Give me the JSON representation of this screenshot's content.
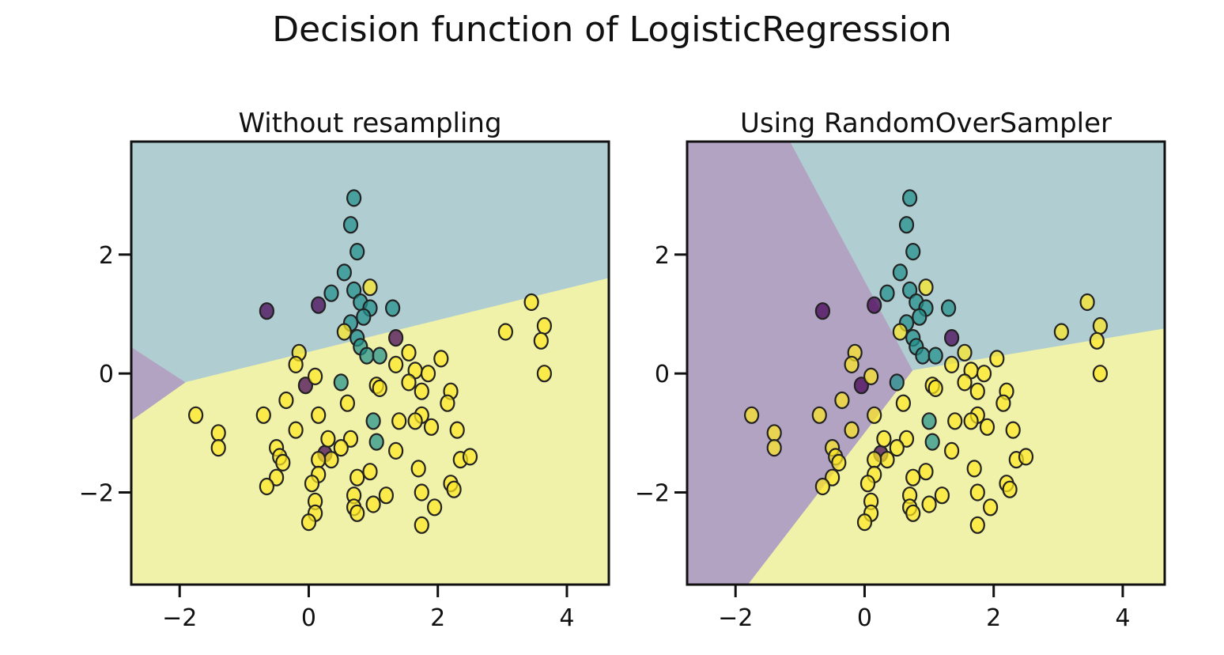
{
  "figure": {
    "title": "Decision function of LogisticRegression"
  },
  "colors": {
    "class0": "#b2a3c2",
    "class1": "#b0cdd1",
    "class2": "#f0f2aa",
    "point0": "#440154",
    "point1": "#21908c",
    "point2": "#fde725",
    "edge": "#222222"
  },
  "chart_data": [
    {
      "type": "scatter",
      "title": "Without resampling",
      "xlabel": "",
      "ylabel": "",
      "xlim": [
        -2.75,
        4.65
      ],
      "ylim": [
        -3.55,
        3.9
      ],
      "xticks": [
        -2,
        0,
        2,
        4
      ],
      "yticks": [
        -2,
        0,
        2
      ],
      "xtick_labels": [
        "−2",
        "0",
        "2",
        "4"
      ],
      "ytick_labels": [
        "−2",
        "0",
        "2"
      ],
      "regions": [
        {
          "class": 0,
          "polygon": [
            [
              -2.75,
              0.45
            ],
            [
              -1.9,
              -0.15
            ],
            [
              -2.75,
              -0.8
            ]
          ]
        },
        {
          "class": 1,
          "polygon": [
            [
              -2.75,
              3.9
            ],
            [
              4.65,
              3.9
            ],
            [
              4.65,
              1.6
            ],
            [
              -1.9,
              -0.15
            ],
            [
              -2.75,
              0.45
            ]
          ]
        },
        {
          "class": 2,
          "polygon": [
            [
              -1.9,
              -0.15
            ],
            [
              4.65,
              1.6
            ],
            [
              4.65,
              -3.55
            ],
            [
              -2.75,
              -3.55
            ],
            [
              -2.75,
              -0.8
            ]
          ]
        }
      ]
    },
    {
      "type": "scatter",
      "title": "Using RandomOverSampler",
      "xlabel": "",
      "ylabel": "",
      "xlim": [
        -2.75,
        4.65
      ],
      "ylim": [
        -3.55,
        3.9
      ],
      "xticks": [
        -2,
        0,
        2,
        4
      ],
      "yticks": [
        -2,
        0,
        2
      ],
      "xtick_labels": [
        "−2",
        "0",
        "2",
        "4"
      ],
      "ytick_labels": [
        "−2",
        "0",
        "2"
      ],
      "regions": [
        {
          "class": 0,
          "polygon": [
            [
              -2.75,
              3.9
            ],
            [
              -1.15,
              3.9
            ],
            [
              0.75,
              0.05
            ],
            [
              -1.8,
              -3.55
            ],
            [
              -2.75,
              -3.55
            ]
          ]
        },
        {
          "class": 1,
          "polygon": [
            [
              -1.15,
              3.9
            ],
            [
              4.65,
              3.9
            ],
            [
              4.65,
              0.75
            ],
            [
              0.75,
              0.05
            ]
          ]
        },
        {
          "class": 2,
          "polygon": [
            [
              0.75,
              0.05
            ],
            [
              4.65,
              0.75
            ],
            [
              4.65,
              -3.55
            ],
            [
              -1.8,
              -3.55
            ]
          ]
        }
      ]
    }
  ],
  "points": [
    {
      "x": 0.7,
      "y": 2.95,
      "c": 1
    },
    {
      "x": 0.65,
      "y": 2.5,
      "c": 1
    },
    {
      "x": 0.75,
      "y": 2.05,
      "c": 1
    },
    {
      "x": 0.55,
      "y": 1.7,
      "c": 1
    },
    {
      "x": 0.35,
      "y": 1.35,
      "c": 1
    },
    {
      "x": 0.7,
      "y": 1.4,
      "c": 1
    },
    {
      "x": 0.8,
      "y": 1.2,
      "c": 1
    },
    {
      "x": 0.95,
      "y": 1.1,
      "c": 1
    },
    {
      "x": 1.3,
      "y": 1.1,
      "c": 1
    },
    {
      "x": 0.85,
      "y": 0.95,
      "c": 1
    },
    {
      "x": 0.65,
      "y": 0.85,
      "c": 1
    },
    {
      "x": 0.75,
      "y": 0.6,
      "c": 1
    },
    {
      "x": 0.8,
      "y": 0.45,
      "c": 1
    },
    {
      "x": 0.9,
      "y": 0.3,
      "c": 1
    },
    {
      "x": 1.1,
      "y": 0.3,
      "c": 1
    },
    {
      "x": 0.5,
      "y": -0.15,
      "c": 1
    },
    {
      "x": 1.0,
      "y": -0.8,
      "c": 1
    },
    {
      "x": 1.05,
      "y": -1.15,
      "c": 1
    },
    {
      "x": -0.65,
      "y": 1.05,
      "c": 0
    },
    {
      "x": 0.15,
      "y": 1.15,
      "c": 0
    },
    {
      "x": 1.35,
      "y": 0.6,
      "c": 0
    },
    {
      "x": -0.05,
      "y": -0.2,
      "c": 0
    },
    {
      "x": 0.25,
      "y": -1.35,
      "c": 0
    },
    {
      "x": 0.95,
      "y": 1.45,
      "c": 2
    },
    {
      "x": 3.45,
      "y": 1.2,
      "c": 2
    },
    {
      "x": 3.65,
      "y": 0.8,
      "c": 2
    },
    {
      "x": 3.6,
      "y": 0.55,
      "c": 2
    },
    {
      "x": 3.05,
      "y": 0.7,
      "c": 2
    },
    {
      "x": 3.65,
      "y": 0.0,
      "c": 2
    },
    {
      "x": 0.55,
      "y": 0.7,
      "c": 2
    },
    {
      "x": 1.55,
      "y": 0.35,
      "c": 2
    },
    {
      "x": 1.35,
      "y": 0.15,
      "c": 2
    },
    {
      "x": 1.65,
      "y": 0.05,
      "c": 2
    },
    {
      "x": 1.85,
      "y": 0.0,
      "c": 2
    },
    {
      "x": 2.05,
      "y": 0.25,
      "c": 2
    },
    {
      "x": 1.55,
      "y": -0.15,
      "c": 2
    },
    {
      "x": 1.75,
      "y": -0.3,
      "c": 2
    },
    {
      "x": 2.2,
      "y": -0.3,
      "c": 2
    },
    {
      "x": 2.15,
      "y": -0.5,
      "c": 2
    },
    {
      "x": 1.05,
      "y": -0.2,
      "c": 2
    },
    {
      "x": 1.1,
      "y": -0.25,
      "c": 2
    },
    {
      "x": -0.15,
      "y": 0.35,
      "c": 2
    },
    {
      "x": -0.2,
      "y": 0.15,
      "c": 2
    },
    {
      "x": 0.1,
      "y": -0.05,
      "c": 2
    },
    {
      "x": -0.35,
      "y": -0.45,
      "c": 2
    },
    {
      "x": 0.6,
      "y": -0.5,
      "c": 2
    },
    {
      "x": 0.15,
      "y": -0.7,
      "c": 2
    },
    {
      "x": -0.7,
      "y": -0.7,
      "c": 2
    },
    {
      "x": -1.75,
      "y": -0.7,
      "c": 2
    },
    {
      "x": -1.4,
      "y": -1.0,
      "c": 2
    },
    {
      "x": -1.4,
      "y": -1.25,
      "c": 2
    },
    {
      "x": -0.2,
      "y": -0.95,
      "c": 2
    },
    {
      "x": 1.4,
      "y": -0.8,
      "c": 2
    },
    {
      "x": 1.75,
      "y": -0.7,
      "c": 2
    },
    {
      "x": 1.65,
      "y": -0.8,
      "c": 2
    },
    {
      "x": 1.9,
      "y": -0.9,
      "c": 2
    },
    {
      "x": 2.3,
      "y": -0.95,
      "c": 2
    },
    {
      "x": 1.35,
      "y": -1.3,
      "c": 2
    },
    {
      "x": 0.65,
      "y": -1.1,
      "c": 2
    },
    {
      "x": 0.5,
      "y": -1.25,
      "c": 2
    },
    {
      "x": 0.3,
      "y": -1.1,
      "c": 2
    },
    {
      "x": 0.35,
      "y": -1.45,
      "c": 2
    },
    {
      "x": 0.15,
      "y": -1.45,
      "c": 2
    },
    {
      "x": -0.5,
      "y": -1.25,
      "c": 2
    },
    {
      "x": -0.45,
      "y": -1.4,
      "c": 2
    },
    {
      "x": -0.4,
      "y": -1.5,
      "c": 2
    },
    {
      "x": 2.35,
      "y": -1.45,
      "c": 2
    },
    {
      "x": 2.5,
      "y": -1.4,
      "c": 2
    },
    {
      "x": 1.7,
      "y": -1.6,
      "c": 2
    },
    {
      "x": 0.95,
      "y": -1.65,
      "c": 2
    },
    {
      "x": 0.75,
      "y": -1.75,
      "c": 2
    },
    {
      "x": 0.15,
      "y": -1.7,
      "c": 2
    },
    {
      "x": 0.05,
      "y": -1.85,
      "c": 2
    },
    {
      "x": -0.5,
      "y": -1.75,
      "c": 2
    },
    {
      "x": -0.65,
      "y": -1.9,
      "c": 2
    },
    {
      "x": 2.2,
      "y": -1.85,
      "c": 2
    },
    {
      "x": 2.25,
      "y": -1.95,
      "c": 2
    },
    {
      "x": 1.75,
      "y": -2.0,
      "c": 2
    },
    {
      "x": 1.2,
      "y": -2.05,
      "c": 2
    },
    {
      "x": 0.7,
      "y": -2.05,
      "c": 2
    },
    {
      "x": 1.0,
      "y": -2.2,
      "c": 2
    },
    {
      "x": 0.7,
      "y": -2.25,
      "c": 2
    },
    {
      "x": 0.75,
      "y": -2.35,
      "c": 2
    },
    {
      "x": 0.1,
      "y": -2.15,
      "c": 2
    },
    {
      "x": 0.1,
      "y": -2.35,
      "c": 2
    },
    {
      "x": 0.0,
      "y": -2.5,
      "c": 2
    },
    {
      "x": 1.95,
      "y": -2.25,
      "c": 2
    },
    {
      "x": 1.75,
      "y": -2.55,
      "c": 2
    }
  ]
}
